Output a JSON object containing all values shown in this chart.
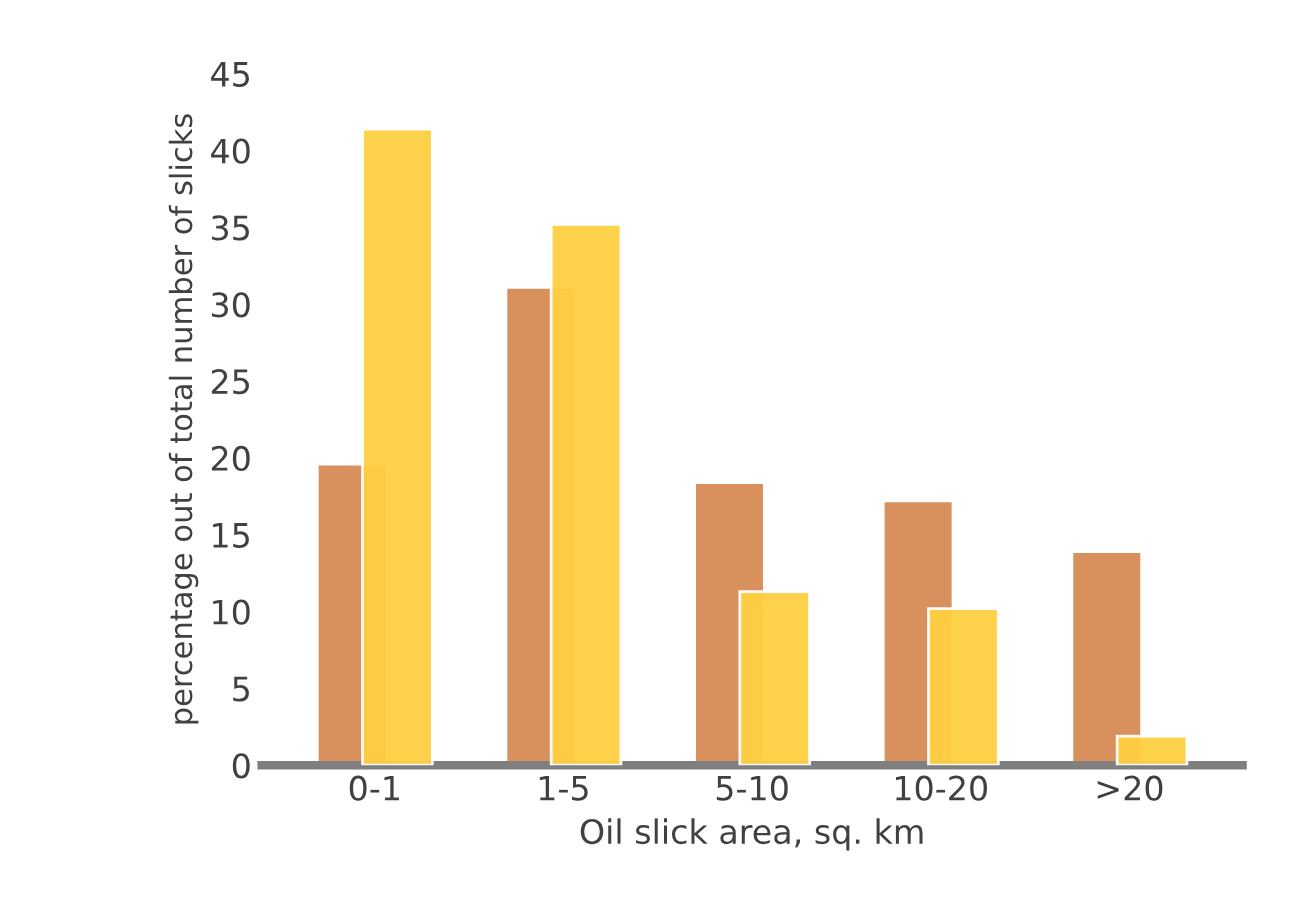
{
  "chart_data": {
    "type": "bar",
    "xlabel": "Oil slick area, sq. km",
    "ylabel": "percentage out of total number of slicks",
    "categories": [
      "0-1",
      "1-5",
      "5-10",
      "10-20",
      ">20"
    ],
    "series": [
      {
        "color": "#d68c55",
        "values": [
          19.6,
          31.1,
          18.4,
          17.2,
          13.9
        ]
      },
      {
        "color": "#ffd042",
        "values": [
          41.4,
          35.2,
          11.3,
          10.2,
          1.9
        ]
      }
    ],
    "ylim": [
      0,
      45
    ],
    "yticks": [
      0,
      5,
      10,
      15,
      20,
      25,
      30,
      35,
      40,
      45
    ],
    "grid": false
  }
}
